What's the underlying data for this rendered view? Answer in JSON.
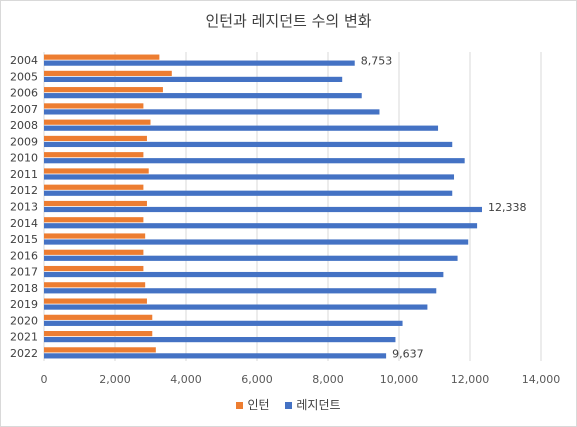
{
  "chart_data": {
    "type": "bar",
    "orientation": "horizontal",
    "title": "인턴과 레지던트 수의 변화",
    "categories": [
      "2004",
      "2005",
      "2006",
      "2007",
      "2008",
      "2009",
      "2010",
      "2011",
      "2012",
      "2013",
      "2014",
      "2015",
      "2016",
      "2017",
      "2018",
      "2019",
      "2020",
      "2021",
      "2022"
    ],
    "series": [
      {
        "name": "인턴",
        "color": "#ed7d31",
        "values": [
          3250,
          3600,
          3350,
          2800,
          3000,
          2900,
          2800,
          2950,
          2800,
          2900,
          2800,
          2850,
          2800,
          2800,
          2850,
          2900,
          3050,
          3050,
          3150
        ]
      },
      {
        "name": "레지던트",
        "color": "#4472c4",
        "values": [
          8753,
          8400,
          8950,
          9450,
          11100,
          11500,
          11850,
          11550,
          11500,
          12338,
          12200,
          11950,
          11650,
          11250,
          11050,
          10800,
          10100,
          9900,
          9637
        ]
      }
    ],
    "data_labels": [
      {
        "category": "2004",
        "text": "8,753"
      },
      {
        "category": "2013",
        "text": "12,338"
      },
      {
        "category": "2022",
        "text": "9,637"
      }
    ],
    "xlim": [
      0,
      14000
    ],
    "x_ticks": [
      0,
      2000,
      4000,
      6000,
      8000,
      10000,
      12000,
      14000
    ],
    "x_tick_labels": [
      "0",
      "2,000",
      "4,000",
      "6,000",
      "8,000",
      "10,000",
      "12,000",
      "14,000"
    ],
    "grid": true,
    "legend_position": "bottom"
  }
}
